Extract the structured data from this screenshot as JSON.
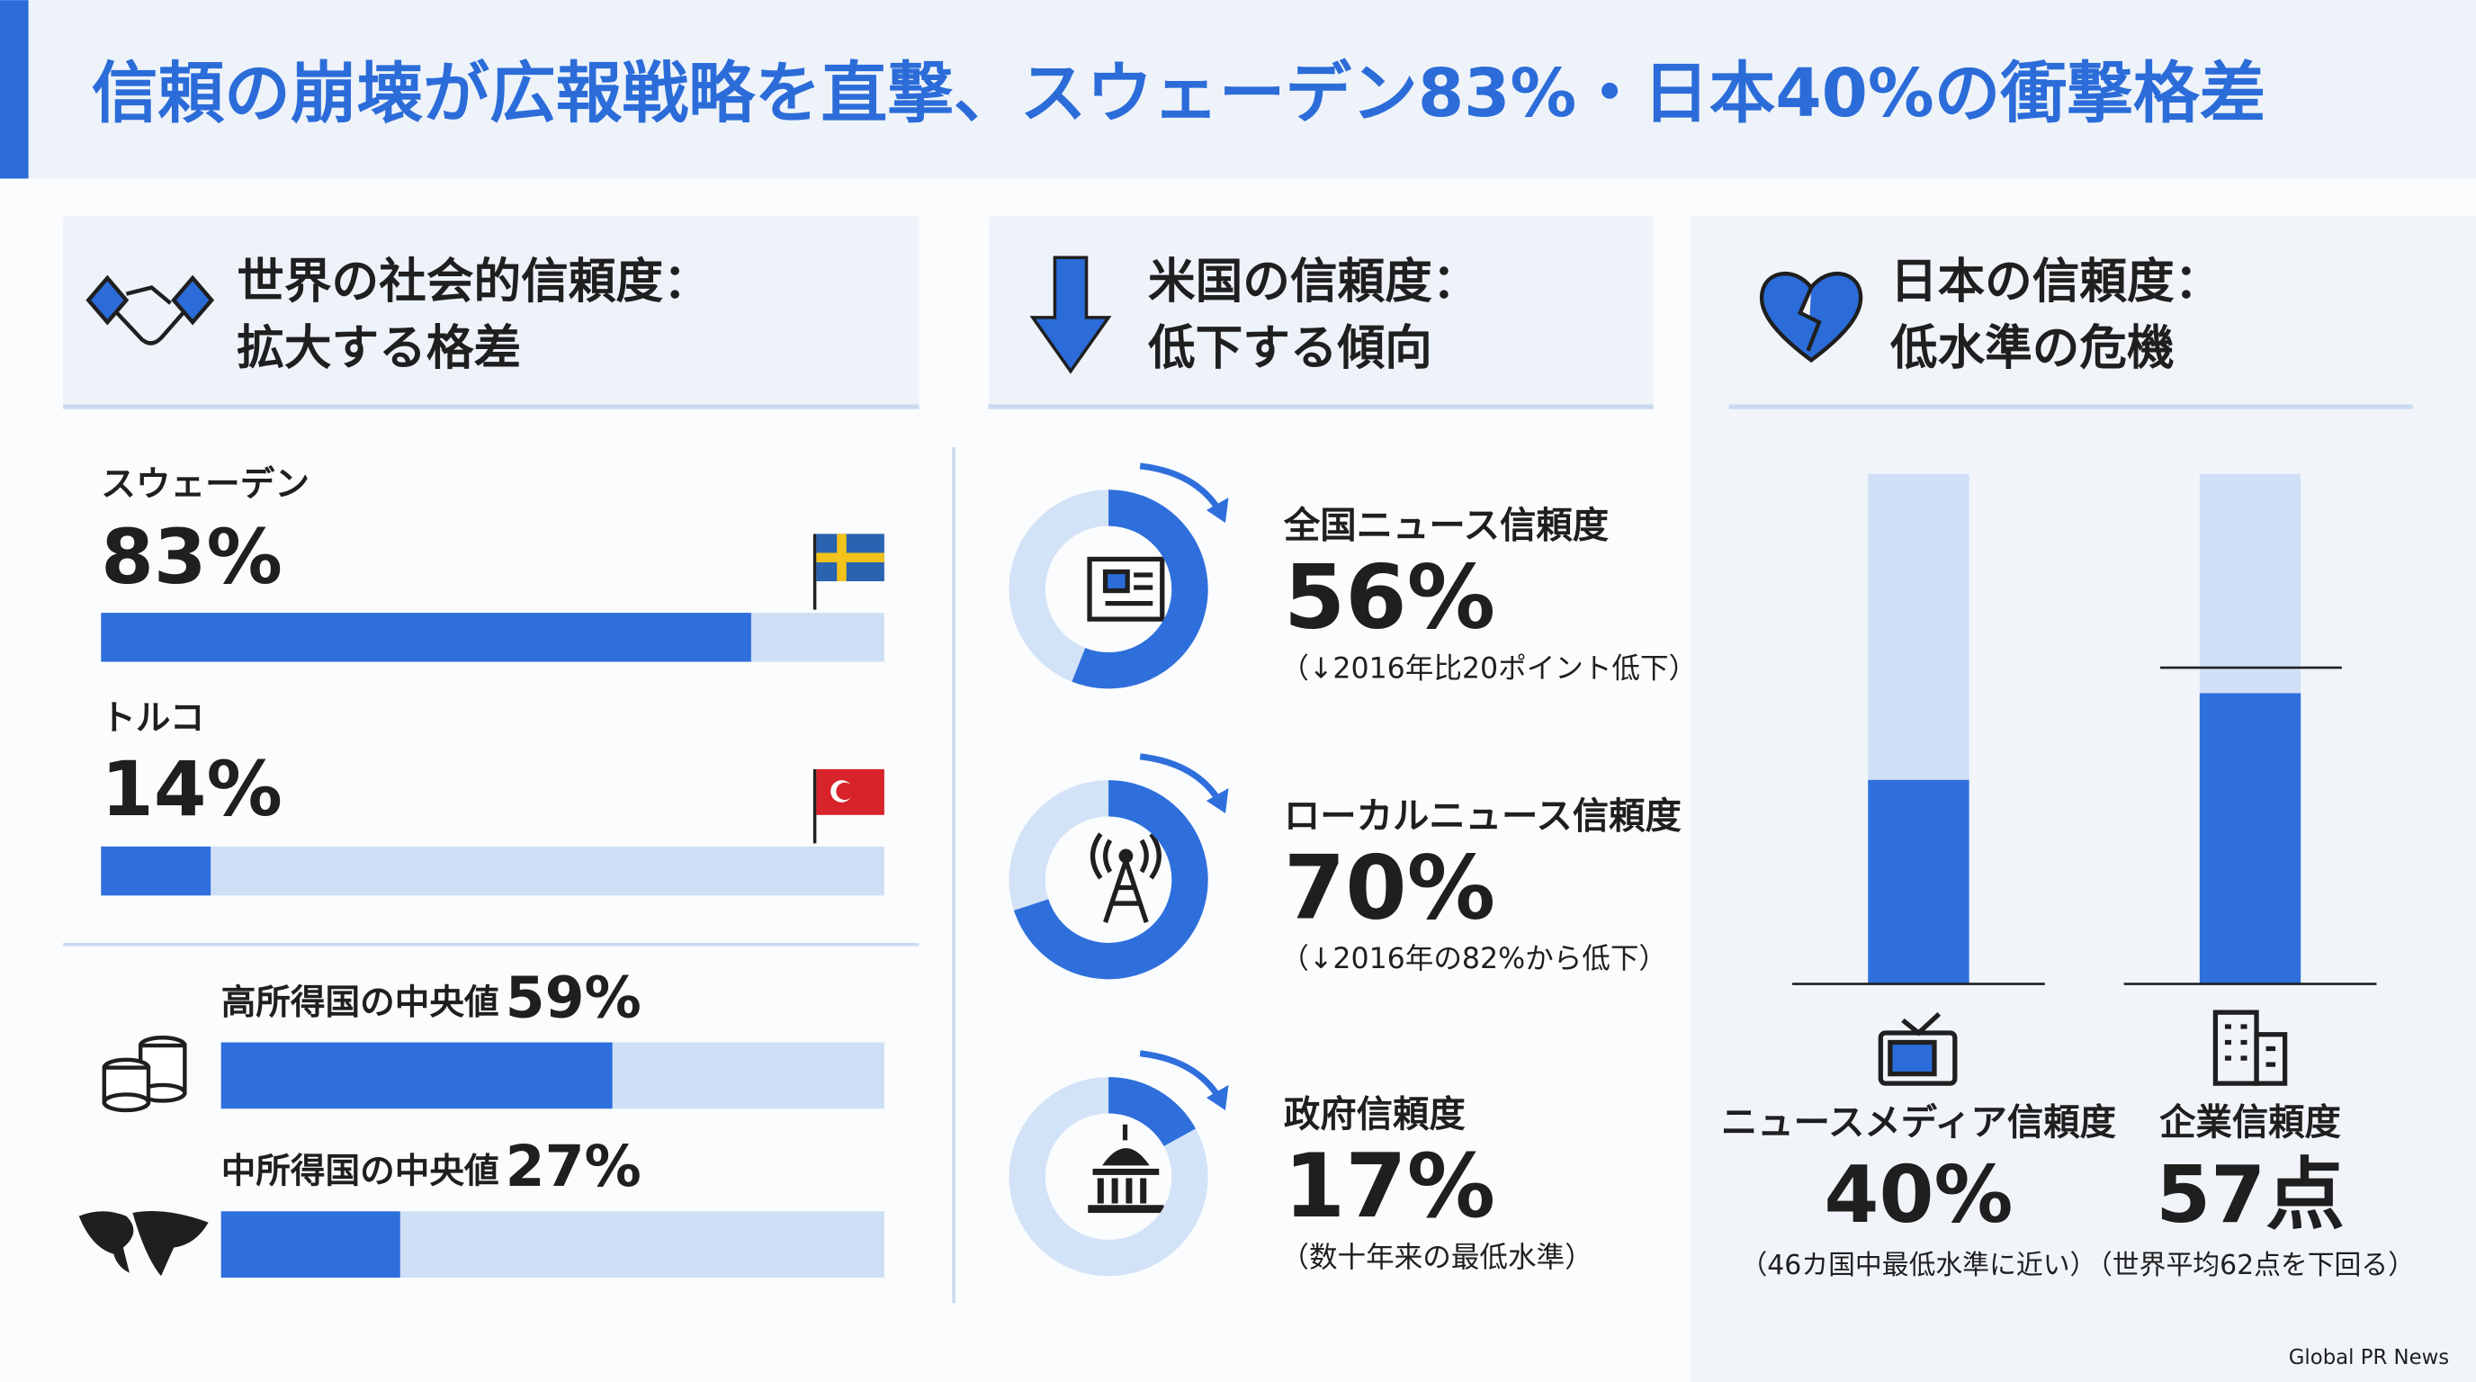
{
  "header": {
    "title": "信頼の崩壊が広報戦略を直撃、スウェーデン83%・日本40%の衝撃格差"
  },
  "world": {
    "heading_lines": [
      "世界の社会的信頼度：",
      "拡大する格差"
    ],
    "countries": [
      {
        "name": "スウェーデン",
        "value": 83,
        "value_label": "83%"
      },
      {
        "name": "トルコ",
        "value": 14,
        "value_label": "14%"
      }
    ],
    "income": [
      {
        "name": "高所得国の中央値",
        "value": 59,
        "value_label": "59%"
      },
      {
        "name": "中所得国の中央値",
        "value": 27,
        "value_label": "27%"
      }
    ]
  },
  "us": {
    "heading_lines": [
      "米国の信頼度：",
      "低下する傾向"
    ],
    "items": [
      {
        "name": "全国ニュース信頼度",
        "value": 56,
        "value_label": "56%",
        "note": "（↓2016年比20ポイント低下）"
      },
      {
        "name": "ローカルニュース信頼度",
        "value": 70,
        "value_label": "70%",
        "note": "（↓2016年の82%から低下）"
      },
      {
        "name": "政府信頼度",
        "value": 17,
        "value_label": "17%",
        "note": "（数十年来の最低水準）"
      }
    ]
  },
  "japan": {
    "heading_lines": [
      "日本の信頼度：",
      "低水準の危機"
    ],
    "bars": [
      {
        "name": "ニュースメディア信頼度",
        "value": 40,
        "value_label": "40%",
        "note": "（46カ国中最低水準に近い）"
      },
      {
        "name": "企業信頼度",
        "value": 57,
        "value_label": "57点",
        "note": "（世界平均62点を下回る）",
        "reference": 62
      }
    ]
  },
  "footer": {
    "source": "Global PR News"
  }
}
